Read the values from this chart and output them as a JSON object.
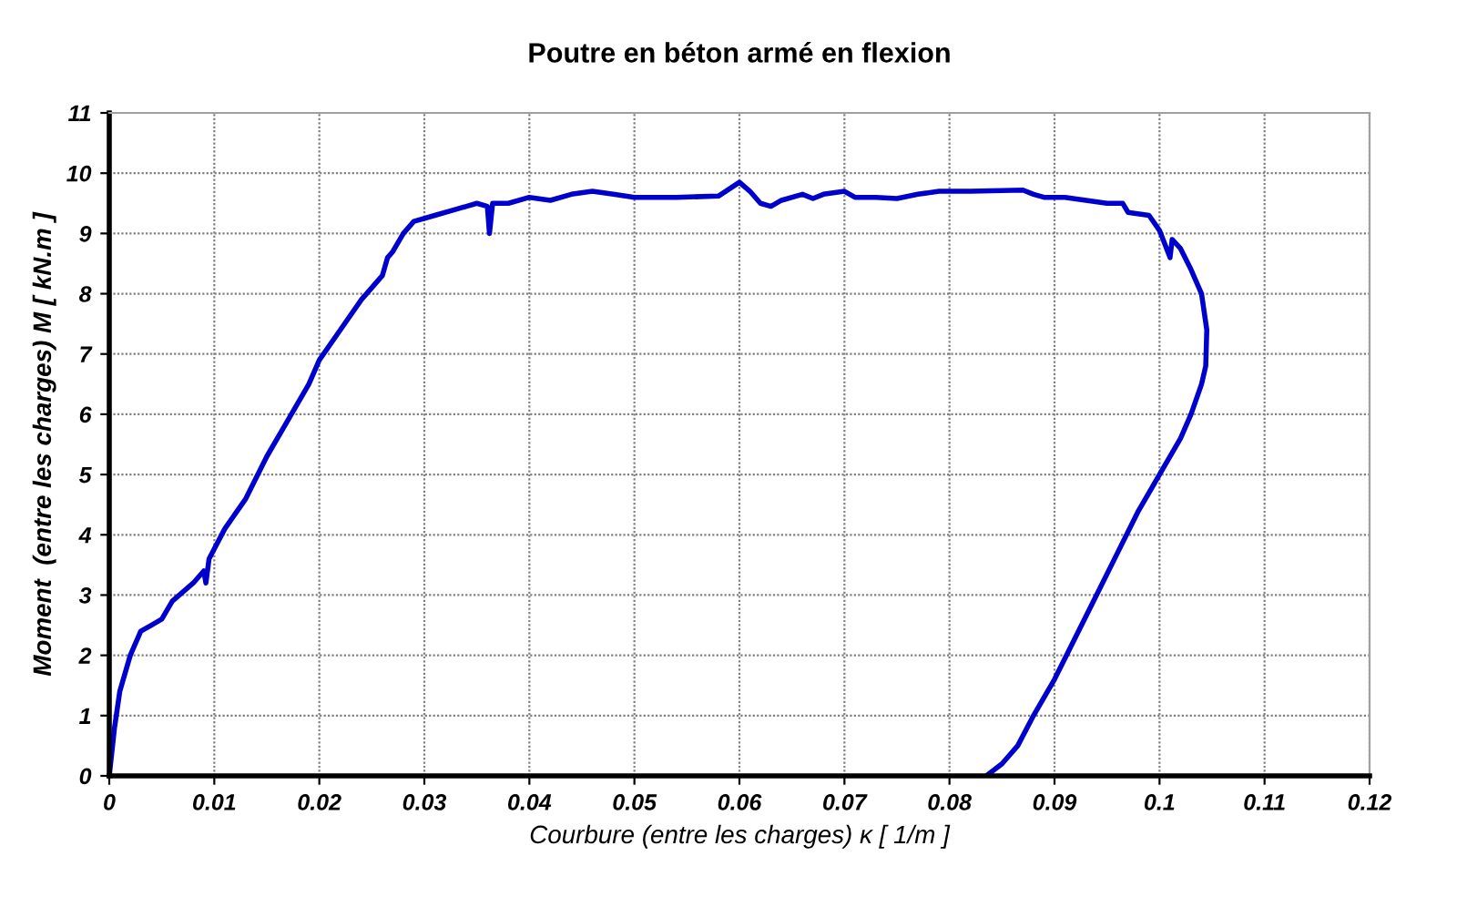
{
  "chart_data": {
    "type": "line",
    "title": "Poutre en béton armé en flexion",
    "xlabel": "Courbure (entre les charges) κ [ 1/m ]",
    "ylabel": "Moment  (entre les charges) M [ kN.m ]",
    "x": [
      0,
      0.0005,
      0.001,
      0.002,
      0.003,
      0.004,
      0.005,
      0.006,
      0.008,
      0.009,
      0.0092,
      0.0095,
      0.011,
      0.013,
      0.015,
      0.017,
      0.019,
      0.02,
      0.022,
      0.024,
      0.026,
      0.0265,
      0.027,
      0.028,
      0.029,
      0.031,
      0.033,
      0.034,
      0.035,
      0.036,
      0.0362,
      0.0365,
      0.038,
      0.04,
      0.042,
      0.044,
      0.046,
      0.048,
      0.05,
      0.054,
      0.058,
      0.06,
      0.061,
      0.062,
      0.063,
      0.064,
      0.066,
      0.067,
      0.068,
      0.07,
      0.071,
      0.073,
      0.075,
      0.077,
      0.079,
      0.082,
      0.087,
      0.088,
      0.089,
      0.091,
      0.093,
      0.095,
      0.0965,
      0.097,
      0.099,
      0.1,
      0.101,
      0.1012,
      0.102,
      0.103,
      0.104,
      0.1045,
      0.1044,
      0.104,
      0.103,
      0.102,
      0.1,
      0.098,
      0.096,
      0.094,
      0.092,
      0.09,
      0.088,
      0.0865,
      0.085,
      0.0835
    ],
    "series": [
      {
        "color": "#0000cc",
        "values": [
          0,
          0.8,
          1.4,
          2.0,
          2.4,
          2.5,
          2.6,
          2.9,
          3.2,
          3.4,
          3.2,
          3.6,
          4.1,
          4.6,
          5.3,
          5.9,
          6.5,
          6.9,
          7.4,
          7.9,
          8.3,
          8.6,
          8.7,
          9.0,
          9.2,
          9.3,
          9.4,
          9.45,
          9.5,
          9.45,
          9.0,
          9.5,
          9.5,
          9.6,
          9.55,
          9.65,
          9.7,
          9.65,
          9.6,
          9.6,
          9.62,
          9.85,
          9.7,
          9.5,
          9.45,
          9.55,
          9.65,
          9.58,
          9.65,
          9.7,
          9.6,
          9.6,
          9.58,
          9.65,
          9.7,
          9.7,
          9.72,
          9.65,
          9.6,
          9.6,
          9.55,
          9.5,
          9.5,
          9.35,
          9.3,
          9.05,
          8.6,
          8.9,
          8.75,
          8.4,
          8.0,
          7.4,
          6.8,
          6.5,
          6.0,
          5.6,
          5.0,
          4.4,
          3.7,
          3.0,
          2.3,
          1.6,
          1.0,
          0.5,
          0.2,
          0
        ]
      }
    ],
    "xlim": [
      0,
      0.12
    ],
    "xticks": [
      0,
      0.01,
      0.02,
      0.03,
      0.04,
      0.05,
      0.06,
      0.07,
      0.08,
      0.09,
      0.1,
      0.11,
      0.12
    ],
    "ylim": [
      0,
      11
    ],
    "yticks": [
      0,
      1,
      2,
      3,
      4,
      5,
      6,
      7,
      8,
      9,
      10,
      11
    ],
    "grid": true,
    "marker": "none",
    "line_style": "solid"
  }
}
